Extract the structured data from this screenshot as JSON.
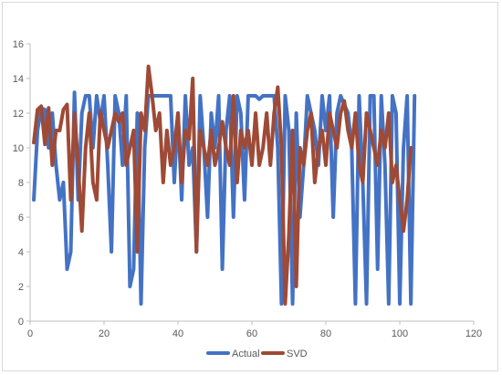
{
  "chart_data": {
    "type": "line",
    "title": "",
    "xlabel": "",
    "ylabel": "",
    "xlim": [
      0,
      120
    ],
    "ylim": [
      0,
      16
    ],
    "x_ticks": [
      0,
      20,
      40,
      60,
      80,
      100,
      120
    ],
    "y_ticks": [
      0,
      2,
      4,
      6,
      8,
      10,
      12,
      14,
      16
    ],
    "grid": false,
    "legend_position": "bottom",
    "series": [
      {
        "name": "Actual",
        "color": "#4472c4",
        "values": [
          7,
          11,
          12.3,
          12.2,
          10,
          12,
          9,
          7,
          8,
          3,
          4,
          13.2,
          7,
          12,
          13,
          13,
          10,
          13,
          11.5,
          13,
          9,
          4,
          13,
          12,
          9,
          13,
          2,
          3,
          12,
          1,
          10,
          13,
          13,
          13,
          13,
          13,
          13,
          13,
          8,
          12,
          7,
          13,
          9,
          10,
          4,
          13,
          10,
          6,
          12,
          10,
          13,
          3,
          11,
          13,
          6,
          13,
          12,
          7,
          13,
          13,
          13,
          12.8,
          13,
          13,
          13,
          13,
          10,
          1,
          13,
          11,
          1,
          12,
          6,
          9,
          13,
          12,
          11,
          9,
          13,
          11,
          13,
          6,
          12,
          13,
          12.5,
          12,
          10,
          1,
          13,
          8,
          1,
          13,
          13,
          3,
          13,
          9,
          1,
          13,
          12,
          1,
          10,
          13,
          1,
          13
        ]
      },
      {
        "name": "SVD",
        "color": "#9e4a36",
        "values": [
          10.3,
          12.2,
          12.4,
          10.2,
          12.3,
          9,
          11,
          11,
          12.2,
          12.5,
          7,
          12,
          9,
          5.2,
          10,
          12,
          8,
          7,
          12.1,
          11,
          10,
          11,
          12,
          11.5,
          12,
          9,
          10,
          11,
          4,
          12,
          11,
          14.7,
          13,
          11,
          12,
          8,
          11,
          9,
          10,
          12,
          8,
          11,
          10.5,
          14,
          4,
          11,
          10,
          9,
          11,
          9,
          10,
          11.5,
          10,
          9,
          13,
          8,
          11,
          10,
          11,
          9,
          12,
          9,
          10,
          12,
          9,
          12,
          13.5,
          10,
          1,
          5,
          11,
          2,
          10,
          9,
          11,
          12,
          8,
          10,
          11,
          9,
          12,
          11,
          10,
          12,
          12.7,
          11,
          10,
          12,
          9,
          8,
          12,
          11,
          10,
          9,
          11,
          10,
          12,
          8,
          9,
          7,
          5.2,
          7,
          10
        ]
      }
    ]
  }
}
